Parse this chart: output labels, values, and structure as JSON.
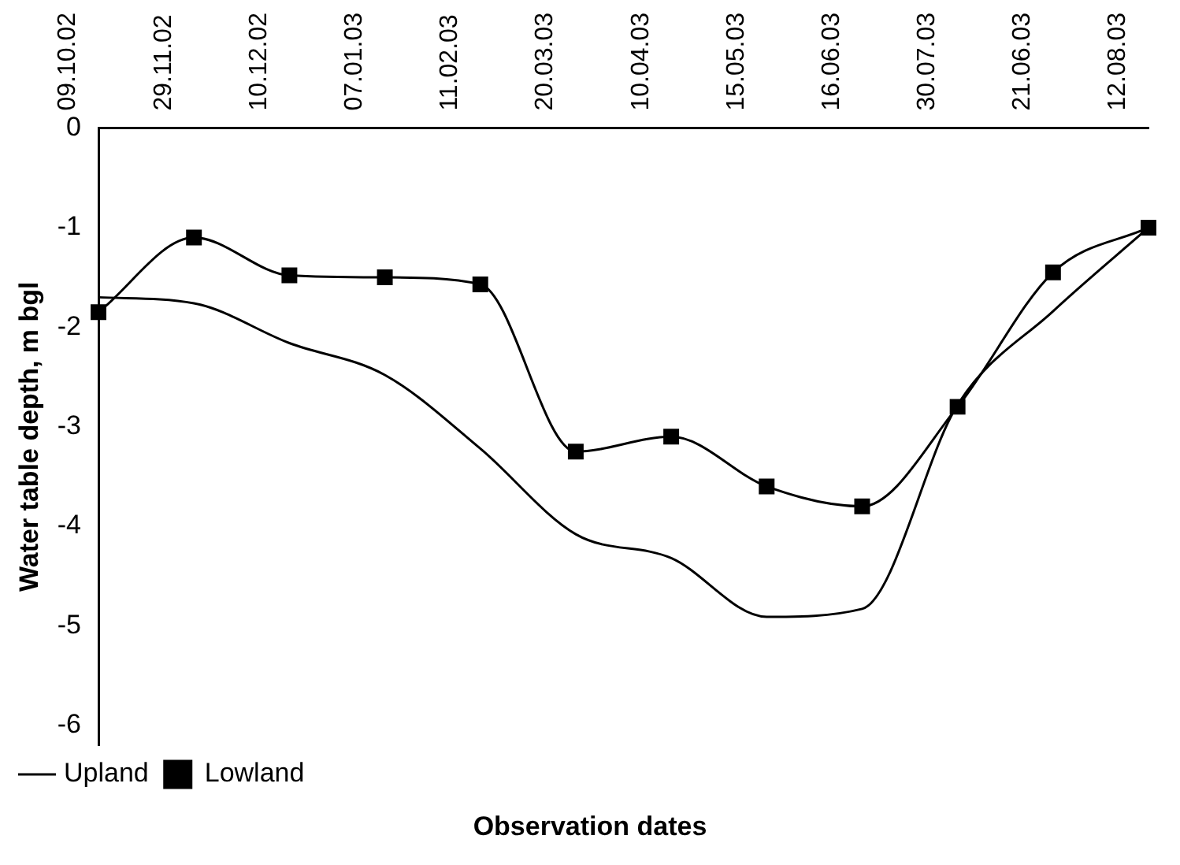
{
  "chart_data": {
    "type": "line",
    "xlabel": "Observation dates",
    "ylabel": "Water table depth, m bgl",
    "categories": [
      "09.10.02",
      "29.11.02",
      "10.12.02",
      "07.01.03",
      "11.02.03",
      "20.03.03",
      "10.04.03",
      "15.05.03",
      "16.06.03",
      "30.07.03",
      "21.06.03",
      "12.08.03"
    ],
    "series": [
      {
        "name": "Upland",
        "color": "#000000",
        "marker": "none",
        "values": [
          -1.7,
          -1.76,
          -2.16,
          -2.48,
          -3.22,
          -4.08,
          -4.32,
          -4.91,
          -4.83,
          -2.78,
          -1.84,
          -1.0
        ]
      },
      {
        "name": "Lowland",
        "color": "#000000",
        "marker": "square",
        "values": [
          -1.85,
          -1.1,
          -1.48,
          -1.5,
          -1.57,
          -3.25,
          -3.1,
          -3.6,
          -3.8,
          -2.8,
          -1.45,
          -1.0
        ]
      }
    ],
    "ylim": [
      -6.2,
      0
    ],
    "yticks": [
      0,
      -1,
      -2,
      -3,
      -4,
      -5,
      -6
    ],
    "grid": false,
    "legend": "bottom left"
  }
}
